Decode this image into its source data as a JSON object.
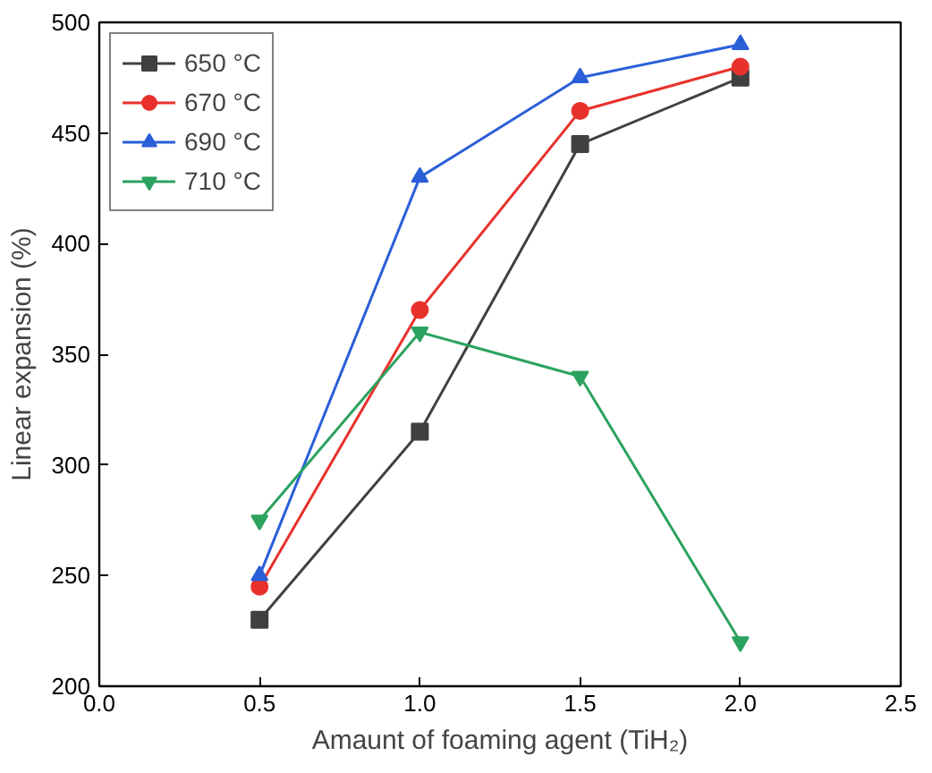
{
  "chart_data": {
    "type": "line",
    "xlabel": "Amaunt of foaming agent (TiH₂)",
    "ylabel": "Linear expansion (%)",
    "x": [
      0.5,
      1.0,
      1.5,
      2.0
    ],
    "series": [
      {
        "name": "650 °C",
        "color": "#404040",
        "marker": "square",
        "values": [
          230,
          315,
          445,
          475
        ]
      },
      {
        "name": "670 °C",
        "color": "#e8312c",
        "marker": "circle",
        "values": [
          245,
          370,
          460,
          480
        ]
      },
      {
        "name": "690 °C",
        "color": "#2a5fd8",
        "marker": "triangle",
        "values": [
          250,
          430,
          475,
          490
        ]
      },
      {
        "name": "710 °C",
        "color": "#2ca25f",
        "marker": "triangle",
        "values": [
          275,
          360,
          340,
          220
        ]
      }
    ],
    "xlim": [
      0.0,
      2.5
    ],
    "xticks": [
      {
        "value": 0.0,
        "label": "0.0"
      },
      {
        "value": 0.5,
        "label": "0.5"
      },
      {
        "value": 1.0,
        "label": "1.0"
      },
      {
        "value": 1.5,
        "label": "1.5"
      },
      {
        "value": 2.0,
        "label": "2.0"
      },
      {
        "value": 2.5,
        "label": "2.5"
      }
    ],
    "ylim": [
      200,
      500
    ],
    "yticks": [
      200,
      250,
      300,
      350,
      400,
      450,
      500
    ],
    "grid": false,
    "legend": "top left",
    "line_style": "solid"
  }
}
